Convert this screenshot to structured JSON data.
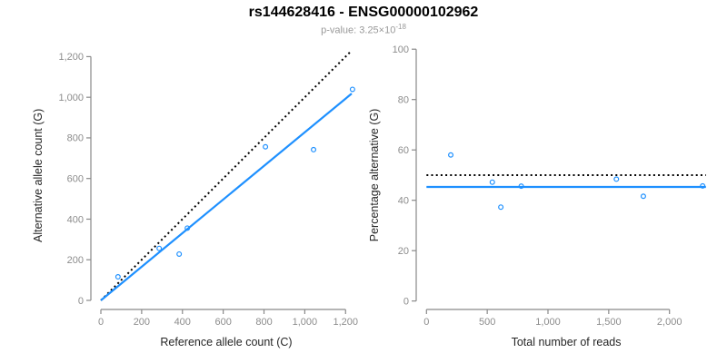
{
  "header": {
    "title": "rs144628416 - ENSG00000102962",
    "p_value_prefix": "p-value: 3.25×10",
    "p_value_exponent": "-18"
  },
  "colors": {
    "accent_blue": "#1E90FF",
    "dotted_line_black": "#000000",
    "axis_line_gray": "#898989",
    "tick_label_gray": "#8C8C8C",
    "axis_title_dark": "#262626",
    "title_black": "#000000",
    "subtitle_gray": "#999999",
    "background": "#FFFFFF"
  },
  "chart_data": [
    {
      "type": "scatter",
      "panel": "left",
      "xlabel": "Reference allele count (C)",
      "ylabel": "Alternative allele count (G)",
      "xlim": [
        0,
        1230
      ],
      "ylim": [
        0,
        1230
      ],
      "xticks": [
        0,
        200,
        400,
        600,
        800,
        1000,
        1200
      ],
      "yticks": [
        0,
        200,
        400,
        600,
        800,
        1000,
        1200
      ],
      "grid": false,
      "points": [
        {
          "x": 84,
          "y": 116
        },
        {
          "x": 286,
          "y": 256
        },
        {
          "x": 384,
          "y": 228
        },
        {
          "x": 424,
          "y": 356
        },
        {
          "x": 807,
          "y": 756
        },
        {
          "x": 1043,
          "y": 742
        },
        {
          "x": 1234,
          "y": 1039
        }
      ],
      "lines": [
        {
          "name": "identity-line",
          "style": "dotted",
          "color": "#000000",
          "x1": 0,
          "y1": 0,
          "x2": 1230,
          "y2": 1230
        },
        {
          "name": "regression-line",
          "style": "solid",
          "color": "#1E90FF",
          "x1": 0,
          "y1": 0,
          "x2": 1230,
          "y2": 1018
        }
      ]
    },
    {
      "type": "scatter",
      "panel": "right",
      "xlabel": "Total number of reads",
      "ylabel": "Percentage alternative (G)",
      "xlim": [
        0,
        2300
      ],
      "ylim": [
        0,
        100
      ],
      "xticks": [
        0,
        500,
        1000,
        1500,
        2000
      ],
      "yticks": [
        0,
        20,
        40,
        60,
        80,
        100
      ],
      "grid": false,
      "points": [
        {
          "x": 200,
          "y": 58.0
        },
        {
          "x": 542,
          "y": 47.2
        },
        {
          "x": 612,
          "y": 37.3
        },
        {
          "x": 780,
          "y": 45.6
        },
        {
          "x": 1563,
          "y": 48.4
        },
        {
          "x": 1785,
          "y": 41.6
        },
        {
          "x": 2273,
          "y": 45.7
        }
      ],
      "lines": [
        {
          "name": "expected-50pct-line",
          "style": "dotted",
          "color": "#000000",
          "x1": 0,
          "y1": 50,
          "x2": 2300,
          "y2": 50
        },
        {
          "name": "mean-percentage-line",
          "style": "solid",
          "color": "#1E90FF",
          "x1": 0,
          "y1": 45.3,
          "x2": 2300,
          "y2": 45.3
        }
      ]
    }
  ]
}
